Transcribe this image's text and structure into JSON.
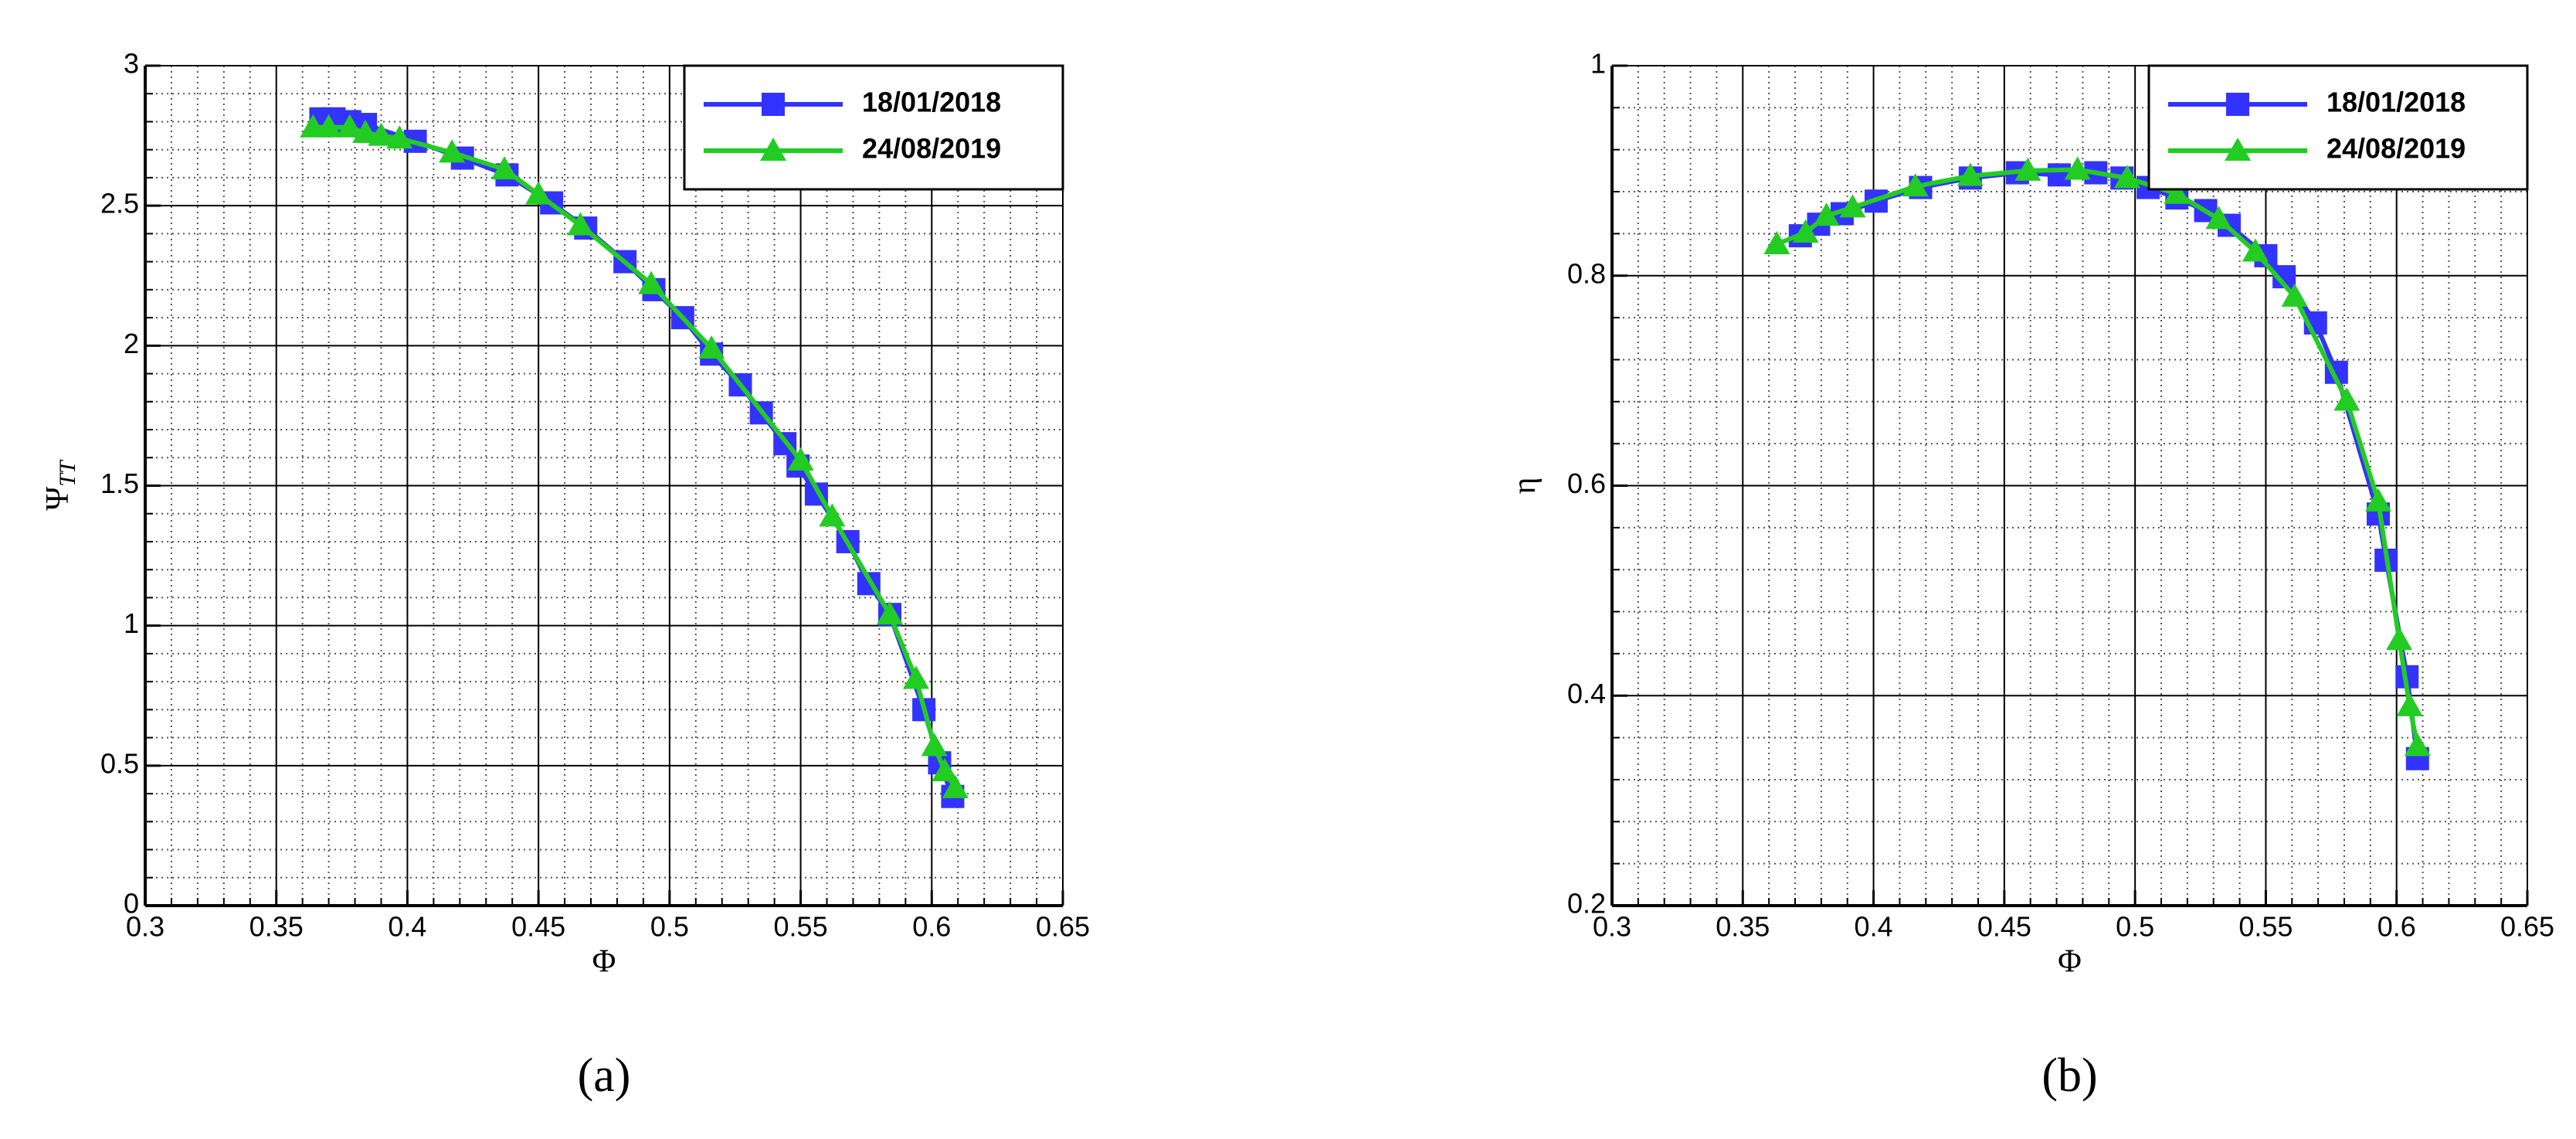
{
  "chart_data": [
    {
      "type": "line",
      "title": "(a)",
      "xlabel": "Φ",
      "ylabel": "Ψ",
      "ylabel_subscript": "TT",
      "xlim": [
        0.3,
        0.65
      ],
      "xticks": [
        0.3,
        0.35,
        0.4,
        0.45,
        0.5,
        0.55,
        0.6,
        0.65
      ],
      "ylim": [
        0,
        3
      ],
      "yticks": [
        0,
        0.5,
        1,
        1.5,
        2,
        2.5,
        3
      ],
      "grid": true,
      "legend": "upper right",
      "series": [
        {
          "name": "18/01/2018",
          "color": "#3333ff",
          "marker": "square",
          "x": [
            0.367,
            0.372,
            0.378,
            0.384,
            0.403,
            0.421,
            0.438,
            0.455,
            0.468,
            0.483,
            0.494,
            0.505,
            0.516,
            0.527,
            0.535,
            0.544,
            0.549,
            0.556,
            0.568,
            0.576,
            0.584,
            0.597,
            0.603,
            0.608
          ],
          "values": [
            2.81,
            2.81,
            2.8,
            2.79,
            2.73,
            2.67,
            2.61,
            2.51,
            2.42,
            2.3,
            2.2,
            2.1,
            1.97,
            1.86,
            1.76,
            1.65,
            1.57,
            1.47,
            1.3,
            1.15,
            1.04,
            0.7,
            0.51,
            0.39
          ]
        },
        {
          "name": "24/08/2019",
          "color": "#22cc22",
          "marker": "triangle",
          "x": [
            0.364,
            0.37,
            0.378,
            0.384,
            0.39,
            0.397,
            0.417,
            0.437,
            0.45,
            0.466,
            0.493,
            0.516,
            0.55,
            0.562,
            0.584,
            0.594,
            0.601,
            0.605,
            0.609
          ],
          "values": [
            2.78,
            2.78,
            2.78,
            2.76,
            2.75,
            2.74,
            2.69,
            2.63,
            2.54,
            2.43,
            2.22,
            1.99,
            1.59,
            1.39,
            1.04,
            0.81,
            0.57,
            0.48,
            0.42
          ]
        }
      ]
    },
    {
      "type": "line",
      "title": "(b)",
      "xlabel": "Φ",
      "ylabel": "η",
      "xlim": [
        0.3,
        0.65
      ],
      "xticks": [
        0.3,
        0.35,
        0.4,
        0.45,
        0.5,
        0.55,
        0.6,
        0.65
      ],
      "ylim": [
        0.2,
        1
      ],
      "yticks": [
        0.2,
        0.4,
        0.6,
        0.8,
        1
      ],
      "grid": true,
      "legend": "upper right",
      "series": [
        {
          "name": "18/01/2018",
          "color": "#3333ff",
          "marker": "square",
          "x": [
            0.372,
            0.379,
            0.388,
            0.401,
            0.418,
            0.437,
            0.455,
            0.471,
            0.485,
            0.495,
            0.505,
            0.516,
            0.527,
            0.536,
            0.55,
            0.557,
            0.569,
            0.577,
            0.593,
            0.596,
            0.604,
            0.608
          ],
          "values": [
            0.838,
            0.849,
            0.859,
            0.871,
            0.884,
            0.893,
            0.898,
            0.896,
            0.898,
            0.893,
            0.884,
            0.874,
            0.862,
            0.848,
            0.819,
            0.799,
            0.755,
            0.708,
            0.573,
            0.529,
            0.418,
            0.34
          ]
        },
        {
          "name": "24/08/2019",
          "color": "#22cc22",
          "marker": "triangle",
          "x": [
            0.363,
            0.374,
            0.382,
            0.392,
            0.416,
            0.437,
            0.459,
            0.478,
            0.497,
            0.516,
            0.532,
            0.546,
            0.561,
            0.581,
            0.593,
            0.601,
            0.605,
            0.608
          ],
          "values": [
            0.83,
            0.841,
            0.857,
            0.865,
            0.885,
            0.895,
            0.9,
            0.901,
            0.893,
            0.878,
            0.854,
            0.823,
            0.78,
            0.681,
            0.585,
            0.453,
            0.39,
            0.352
          ]
        }
      ]
    }
  ]
}
